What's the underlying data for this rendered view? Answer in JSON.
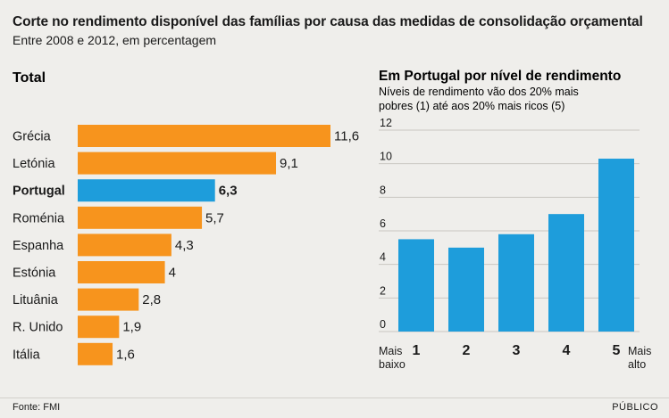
{
  "header": {
    "title": "Corte no rendimento disponível das famílias por causa das medidas de consolidação orçamental",
    "subtitle": "Entre 2008 e 2012, em percentagem"
  },
  "footer": {
    "source": "Fonte: FMI",
    "brand": "PÚBLICO"
  },
  "colors": {
    "bar": "#f7941d",
    "highlight": "#1e9ddb",
    "background": "#efeeeb",
    "text": "#1a1a1a"
  },
  "chart_data": [
    {
      "type": "bar",
      "orientation": "horizontal",
      "title": "Total",
      "categories": [
        "Grécia",
        "Letónia",
        "Portugal",
        "Roménia",
        "Espanha",
        "Estónia",
        "Lituânia",
        "R. Unido",
        "Itália"
      ],
      "values": [
        11.6,
        9.1,
        6.3,
        5.7,
        4.3,
        4,
        2.8,
        1.9,
        1.6
      ],
      "data_labels": [
        "11,6",
        "9,1",
        "6,3",
        "5,7",
        "4,3",
        "4",
        "2,8",
        "1,9",
        "1,6"
      ],
      "highlight": "Portugal"
    },
    {
      "type": "bar",
      "title": "Em Portugal por nível de rendimento",
      "subtitle_lines": [
        "Níveis de rendimento vão dos 20% mais",
        "pobres (1) até aos 20% mais ricos (5)"
      ],
      "categories": [
        "1",
        "2",
        "3",
        "4",
        "5"
      ],
      "values": [
        5.5,
        5.0,
        5.8,
        7.0,
        10.3
      ],
      "ylim": [
        0,
        12
      ],
      "yticks": [
        0,
        2,
        4,
        6,
        8,
        10,
        12
      ],
      "grid": true,
      "end_labels": {
        "left_line1": "Mais",
        "left_line2": "baixo",
        "right_line1": "Mais",
        "right_line2": "alto"
      }
    }
  ]
}
